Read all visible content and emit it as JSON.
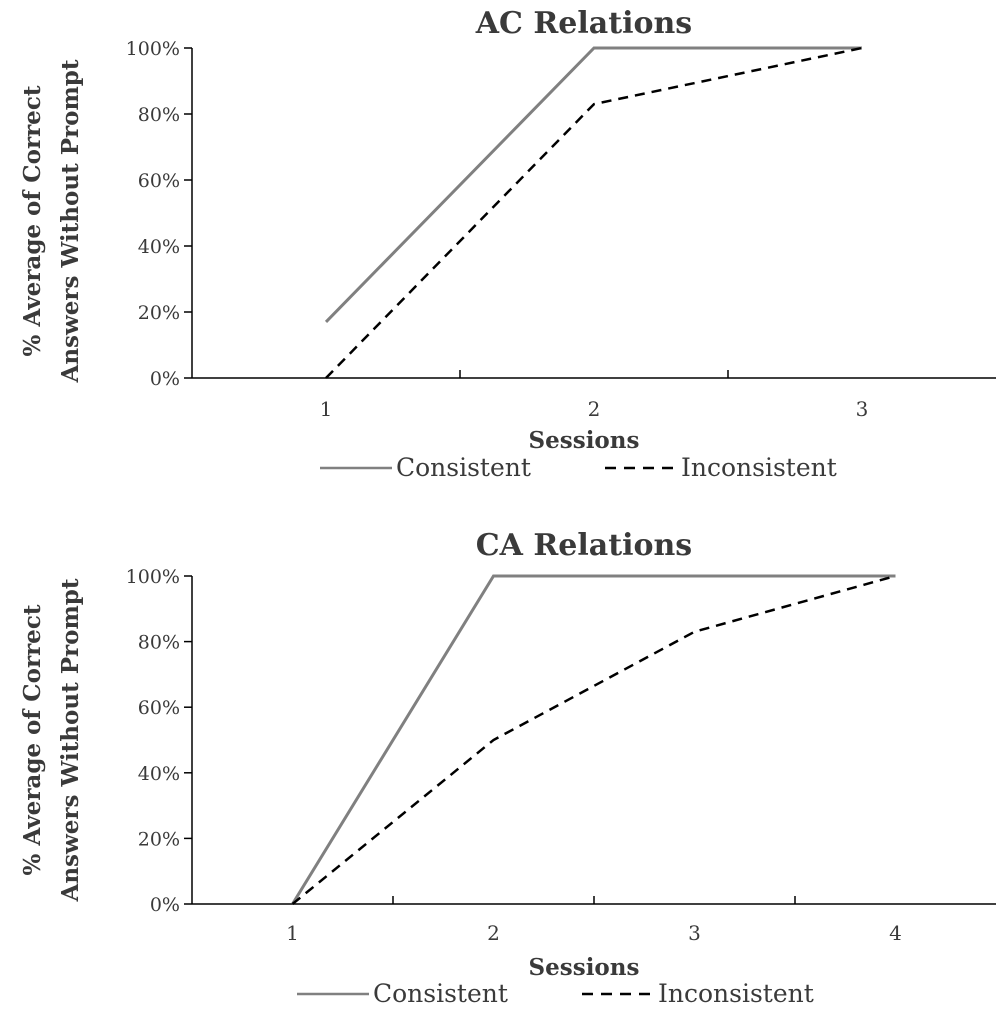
{
  "chart_data": [
    {
      "type": "line",
      "title": "AC Relations",
      "xlabel": "Sessions",
      "ylabel_line1": "% Average of Correct",
      "ylabel_line2": "Answers Without Prompt",
      "categories": [
        "1",
        "2",
        "3"
      ],
      "ylim": [
        0,
        100
      ],
      "yticks": [
        "0%",
        "20%",
        "40%",
        "60%",
        "80%",
        "100%"
      ],
      "series": [
        {
          "name": "Consistent",
          "values": [
            17,
            100,
            100
          ],
          "color": "#808080",
          "dash": "solid"
        },
        {
          "name": "Inconsistent",
          "values": [
            0,
            83,
            100
          ],
          "color": "#000000",
          "dash": "dashed"
        }
      ],
      "legend": "bottom",
      "grid": false
    },
    {
      "type": "line",
      "title": "CA Relations",
      "xlabel": "Sessions",
      "ylabel_line1": "% Average of Correct",
      "ylabel_line2": "Answers Without Prompt",
      "categories": [
        "1",
        "2",
        "3",
        "4"
      ],
      "ylim": [
        0,
        100
      ],
      "yticks": [
        "0%",
        "20%",
        "40%",
        "60%",
        "80%",
        "100%"
      ],
      "series": [
        {
          "name": "Consistent",
          "values": [
            0,
            100,
            100,
            100
          ],
          "color": "#808080",
          "dash": "solid"
        },
        {
          "name": "Inconsistent",
          "values": [
            0,
            50,
            83,
            100
          ],
          "color": "#000000",
          "dash": "dashed"
        }
      ],
      "legend": "bottom",
      "grid": false
    }
  ]
}
